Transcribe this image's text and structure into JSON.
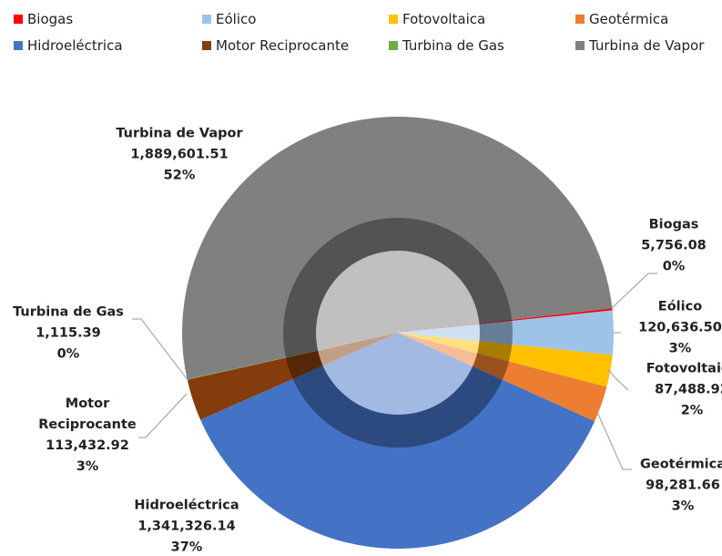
{
  "chart_data": {
    "type": "pie",
    "categories": [
      "Biogas",
      "Eólico",
      "Fotovoltaica",
      "Geotérmica",
      "Hidroeléctrica",
      "Motor Reciprocante",
      "Turbina de Gas",
      "Turbina de Vapor"
    ],
    "values": [
      5756.08,
      120636.5,
      87488.92,
      98281.66,
      1341326.14,
      113432.92,
      1115.39,
      1889601.51
    ],
    "value_labels": [
      "5,756.08",
      "120,636.50",
      "87,488.92",
      "98,281.66",
      "1,341,326.14",
      "113,432.92",
      "1,115.39",
      "1,889,601.51"
    ],
    "percents": [
      0,
      3,
      2,
      3,
      37,
      3,
      0,
      52
    ],
    "percent_labels": [
      "0%",
      "3%",
      "2%",
      "3%",
      "37%",
      "3%",
      "0%",
      "52%"
    ],
    "colors": [
      "#ff0000",
      "#9dc3e6",
      "#ffc000",
      "#ed7d31",
      "#4472c4",
      "#843c0c",
      "#70ad47",
      "#808080"
    ],
    "legend": "top"
  }
}
